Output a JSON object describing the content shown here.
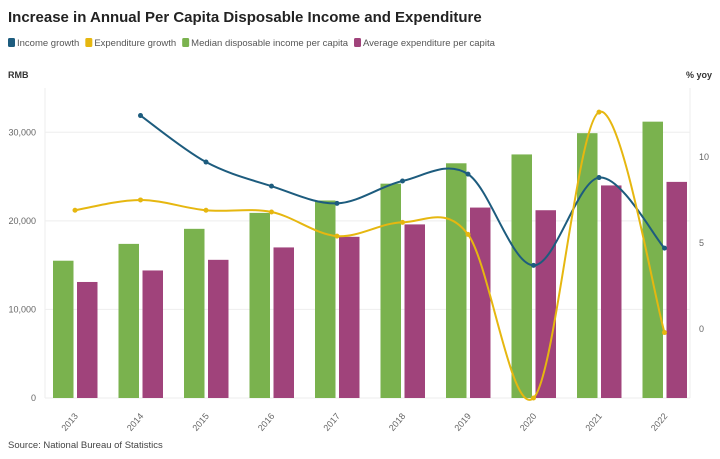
{
  "chart_data": {
    "type": "bar",
    "title": "Increase in Annual Per Capita Disposable Income and Expenditure",
    "source": "Source: National Bureau of Statistics",
    "categories": [
      "2013",
      "2014",
      "2015",
      "2016",
      "2017",
      "2018",
      "2019",
      "2020",
      "2021",
      "2022"
    ],
    "left_axis": {
      "label": "RMB",
      "range": [
        0,
        35000
      ],
      "ticks": [
        0,
        10000,
        20000,
        30000
      ],
      "tick_labels": [
        "0",
        "10,000",
        "20,000",
        "30,000"
      ]
    },
    "right_axis": {
      "label": "% yoy",
      "range": [
        -4,
        14
      ],
      "ticks": [
        0,
        5,
        10
      ],
      "tick_labels": [
        "0",
        "5",
        "10"
      ]
    },
    "grid": true,
    "legend_position": "top",
    "series": [
      {
        "name": "Income growth",
        "type": "line",
        "axis": "right",
        "color": "#1d5c7e",
        "values": [
          null,
          12.4,
          9.7,
          8.3,
          7.3,
          8.6,
          9.0,
          3.7,
          8.8,
          4.7
        ]
      },
      {
        "name": "Expenditure growth",
        "type": "line",
        "axis": "right",
        "color": "#e6b710",
        "values": [
          6.9,
          7.5,
          6.9,
          6.8,
          5.4,
          6.2,
          5.5,
          -4.0,
          12.6,
          -0.2
        ]
      },
      {
        "name": "Median disposable income per capita",
        "type": "bar",
        "axis": "left",
        "color": "#7ab24e",
        "values": [
          15500,
          17400,
          19100,
          20900,
          22300,
          24200,
          26500,
          27500,
          29900,
          31200
        ]
      },
      {
        "name": "Average expenditure per capita",
        "type": "bar",
        "axis": "left",
        "color": "#a0437b",
        "values": [
          13100,
          14400,
          15600,
          17000,
          18200,
          19600,
          21500,
          21200,
          24000,
          24400
        ]
      }
    ]
  }
}
